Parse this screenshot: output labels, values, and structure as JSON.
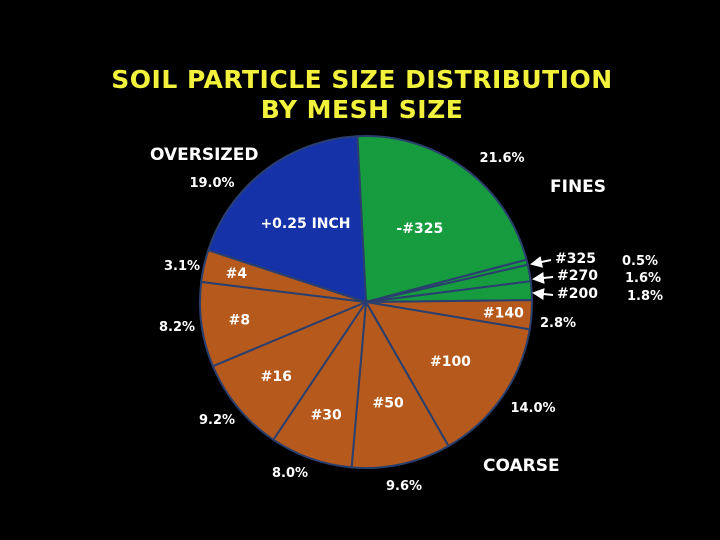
{
  "chart_data": {
    "type": "pie",
    "title": "SOIL PARTICLE SIZE DISTRIBUTION",
    "subtitle": "BY MESH SIZE",
    "group_labels": {
      "oversized": "OVERSIZED",
      "fines": "FINES",
      "coarse": "COARSE"
    },
    "slices": [
      {
        "label": "-#325",
        "value": 21.6,
        "pct_label": "21.6%",
        "group": "fines",
        "color": "#169c3f"
      },
      {
        "label": "#325",
        "value": 0.5,
        "pct_label": "0.5%",
        "group": "fines",
        "color": "#169c3f"
      },
      {
        "label": "#270",
        "value": 1.6,
        "pct_label": "1.6%",
        "group": "fines",
        "color": "#169c3f"
      },
      {
        "label": "#200",
        "value": 1.8,
        "pct_label": "1.8%",
        "group": "fines",
        "color": "#169c3f"
      },
      {
        "label": "#140",
        "value": 2.8,
        "pct_label": "2.8%",
        "group": "coarse",
        "color": "#b55a1c"
      },
      {
        "label": "#100",
        "value": 14.0,
        "pct_label": "14.0%",
        "group": "coarse",
        "color": "#b55a1c"
      },
      {
        "label": "#50",
        "value": 9.6,
        "pct_label": "9.6%",
        "group": "coarse",
        "color": "#b55a1c"
      },
      {
        "label": "#30",
        "value": 8.0,
        "pct_label": "8.0%",
        "group": "coarse",
        "color": "#b55a1c"
      },
      {
        "label": "#16",
        "value": 9.2,
        "pct_label": "9.2%",
        "group": "coarse",
        "color": "#b55a1c"
      },
      {
        "label": "#8",
        "value": 8.2,
        "pct_label": "8.2%",
        "group": "coarse",
        "color": "#b55a1c"
      },
      {
        "label": "#4",
        "value": 3.1,
        "pct_label": "3.1%",
        "group": "coarse",
        "color": "#b55a1c"
      },
      {
        "label": "+0.25 INCH",
        "value": 19.0,
        "pct_label": "19.0%",
        "group": "oversized",
        "color": "#1632a8"
      }
    ],
    "colors": {
      "background": "#000000",
      "title": "#f2f23c",
      "text": "#ffffff",
      "divider": "#2a3f6e"
    }
  }
}
